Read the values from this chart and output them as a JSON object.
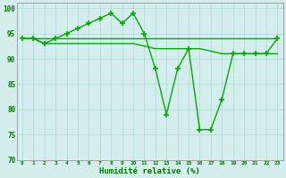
{
  "line1_y": [
    94,
    94,
    94,
    94,
    94,
    94,
    94,
    94,
    94,
    94,
    94,
    94,
    94,
    94,
    94,
    94,
    94,
    94,
    94,
    94,
    94,
    94,
    94,
    94
  ],
  "line2_y": [
    94,
    94,
    93,
    93,
    93,
    93,
    93,
    93,
    93,
    93,
    93,
    92.5,
    92,
    92,
    92,
    92,
    92,
    91.5,
    91,
    91,
    91,
    91,
    91,
    91
  ],
  "line3_y": [
    94,
    94,
    93,
    94,
    95,
    96,
    97,
    98,
    99,
    97,
    99,
    95,
    88,
    79,
    88,
    92,
    76,
    76,
    82,
    91,
    91,
    91,
    91,
    94
  ],
  "x": [
    0,
    1,
    2,
    3,
    4,
    5,
    6,
    7,
    8,
    9,
    10,
    11,
    12,
    13,
    14,
    15,
    16,
    17,
    18,
    19,
    20,
    21,
    22,
    23
  ],
  "xlabel": "Humidité relative (%)",
  "xlim": [
    -0.5,
    23.5
  ],
  "ylim": [
    70,
    101
  ],
  "yticks": [
    70,
    75,
    80,
    85,
    90,
    95,
    100
  ],
  "xticks": [
    0,
    1,
    2,
    3,
    4,
    5,
    6,
    7,
    8,
    9,
    10,
    11,
    12,
    13,
    14,
    15,
    16,
    17,
    18,
    19,
    20,
    21,
    22,
    23
  ],
  "xtick_labels": [
    "0",
    "1",
    "2",
    "3",
    "4",
    "5",
    "6",
    "7",
    "8",
    "9",
    "10",
    "11",
    "12",
    "13",
    "14",
    "15",
    "16",
    "17",
    "18",
    "19",
    "20",
    "21",
    "22",
    "23"
  ],
  "bg_color": "#d4eeed",
  "grid_color": "#b0d8d8",
  "line_color": "#00aa00",
  "xlabel_color": "#007700",
  "tick_color": "#007700",
  "spine_color": "#888888"
}
